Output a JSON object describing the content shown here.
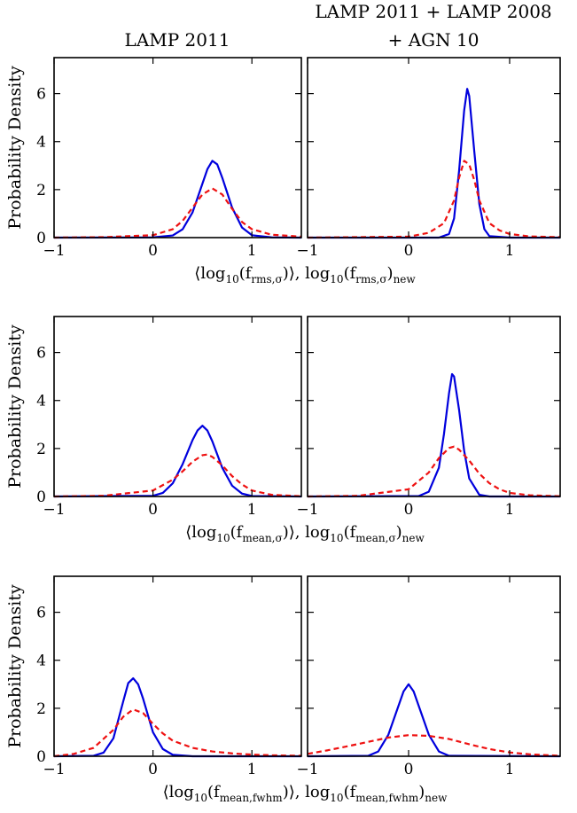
{
  "column_titles": [
    [
      "LAMP 2011"
    ],
    [
      "LAMP 2011 + LAMP 2008",
      "+ AGN 10"
    ]
  ],
  "ylabel": "Probability Density",
  "colors": {
    "solid": "#0000dd",
    "dashed": "#ee1111",
    "axis": "#000000"
  },
  "chart_data": [
    {
      "type": "line",
      "row": 0,
      "col": 0,
      "grid": false,
      "xlim": [
        -1,
        1.5
      ],
      "ylim": [
        0,
        7.5
      ],
      "xticks": [
        -1,
        0,
        1
      ],
      "xtick_labels": [
        "−1",
        "0",
        "1"
      ],
      "yticks": [
        0,
        2,
        4,
        6
      ],
      "ytick_labels": [
        "0",
        "2",
        "4",
        "6"
      ],
      "xlabel": [
        "⟨log",
        "10",
        "(f",
        "rms,σ",
        ")⟩, log",
        "10",
        "(f",
        "rms,σ",
        ")",
        "new"
      ],
      "series": [
        {
          "style": "solid",
          "x": [
            -1,
            0,
            0.2,
            0.3,
            0.4,
            0.5,
            0.55,
            0.6,
            0.65,
            0.7,
            0.8,
            0.9,
            1.0,
            1.2,
            1.5
          ],
          "y": [
            0,
            0.01,
            0.09,
            0.35,
            1.05,
            2.25,
            2.85,
            3.2,
            3.05,
            2.5,
            1.25,
            0.42,
            0.1,
            0.01,
            0
          ]
        },
        {
          "style": "dashed",
          "x": [
            -1,
            -0.5,
            0,
            0.2,
            0.3,
            0.4,
            0.5,
            0.6,
            0.7,
            0.8,
            0.9,
            1.0,
            1.2,
            1.5
          ],
          "y": [
            0,
            0.02,
            0.1,
            0.35,
            0.7,
            1.25,
            1.8,
            2.05,
            1.8,
            1.2,
            0.65,
            0.35,
            0.12,
            0.04
          ]
        }
      ]
    },
    {
      "type": "line",
      "row": 0,
      "col": 1,
      "grid": false,
      "xlim": [
        -1,
        1.5
      ],
      "ylim": [
        0,
        7.5
      ],
      "xticks": [
        -1,
        0,
        1
      ],
      "xtick_labels": [
        "−1",
        "0",
        "1"
      ],
      "yticks": [
        0,
        2,
        4,
        6
      ],
      "ytick_labels": [],
      "series": [
        {
          "style": "solid",
          "x": [
            -1,
            0.3,
            0.4,
            0.45,
            0.5,
            0.55,
            0.58,
            0.6,
            0.65,
            0.7,
            0.75,
            0.8,
            1.0,
            1.5
          ],
          "y": [
            0,
            0,
            0.15,
            0.8,
            2.8,
            5.3,
            6.2,
            5.9,
            3.6,
            1.4,
            0.35,
            0.06,
            0,
            0
          ]
        },
        {
          "style": "dashed",
          "x": [
            -1,
            0,
            0.2,
            0.35,
            0.45,
            0.5,
            0.55,
            0.6,
            0.65,
            0.7,
            0.8,
            0.9,
            1.0,
            1.2,
            1.5
          ],
          "y": [
            0,
            0.04,
            0.2,
            0.6,
            1.55,
            2.5,
            3.2,
            3.05,
            2.4,
            1.55,
            0.6,
            0.3,
            0.15,
            0.05,
            0.02
          ]
        }
      ]
    },
    {
      "type": "line",
      "row": 1,
      "col": 0,
      "grid": false,
      "xlim": [
        -1,
        1.5
      ],
      "ylim": [
        0,
        7.5
      ],
      "xticks": [
        -1,
        0,
        1
      ],
      "xtick_labels": [
        "−1",
        "0",
        "1"
      ],
      "yticks": [
        0,
        2,
        4,
        6
      ],
      "ytick_labels": [
        "0",
        "2",
        "4",
        "6"
      ],
      "xlabel": [
        "⟨log",
        "10",
        "(f",
        "mean,σ",
        ")⟩, log",
        "10",
        "(f",
        "mean,σ",
        ")",
        "new"
      ],
      "series": [
        {
          "style": "solid",
          "x": [
            -1,
            0,
            0.1,
            0.2,
            0.3,
            0.4,
            0.45,
            0.5,
            0.55,
            0.6,
            0.7,
            0.8,
            0.9,
            1.0,
            1.5
          ],
          "y": [
            0,
            0.03,
            0.15,
            0.55,
            1.35,
            2.35,
            2.75,
            2.95,
            2.75,
            2.3,
            1.2,
            0.45,
            0.12,
            0.02,
            0
          ]
        },
        {
          "style": "dashed",
          "x": [
            -1,
            -0.5,
            0,
            0.2,
            0.3,
            0.4,
            0.5,
            0.55,
            0.6,
            0.7,
            0.8,
            0.9,
            1.0,
            1.2,
            1.5
          ],
          "y": [
            0,
            0.03,
            0.25,
            0.7,
            1.05,
            1.45,
            1.72,
            1.75,
            1.65,
            1.3,
            0.85,
            0.5,
            0.25,
            0.07,
            0.01
          ]
        }
      ]
    },
    {
      "type": "line",
      "row": 1,
      "col": 1,
      "grid": false,
      "xlim": [
        -1,
        1.5
      ],
      "ylim": [
        0,
        7.5
      ],
      "xticks": [
        -1,
        0,
        1
      ],
      "xtick_labels": [
        "−1",
        "0",
        "1"
      ],
      "yticks": [
        0,
        2,
        4,
        6
      ],
      "ytick_labels": [],
      "series": [
        {
          "style": "solid",
          "x": [
            -1,
            0.1,
            0.2,
            0.3,
            0.35,
            0.4,
            0.43,
            0.45,
            0.5,
            0.55,
            0.6,
            0.7,
            0.8,
            1.5
          ],
          "y": [
            0,
            0.02,
            0.2,
            1.2,
            2.6,
            4.3,
            5.1,
            5.0,
            3.6,
            1.9,
            0.75,
            0.07,
            0,
            0
          ]
        },
        {
          "style": "dashed",
          "x": [
            -1,
            -0.5,
            0,
            0.2,
            0.3,
            0.4,
            0.45,
            0.5,
            0.6,
            0.7,
            0.8,
            0.9,
            1.0,
            1.2,
            1.5
          ],
          "y": [
            0,
            0.03,
            0.3,
            1.0,
            1.6,
            2.02,
            2.08,
            1.95,
            1.5,
            0.95,
            0.55,
            0.3,
            0.15,
            0.05,
            0.01
          ]
        }
      ]
    },
    {
      "type": "line",
      "row": 2,
      "col": 0,
      "grid": false,
      "xlim": [
        -1,
        1.5
      ],
      "ylim": [
        0,
        7.5
      ],
      "xticks": [
        -1,
        0,
        1
      ],
      "xtick_labels": [
        "−1",
        "0",
        "1"
      ],
      "yticks": [
        0,
        2,
        4,
        6
      ],
      "ytick_labels": [
        "0",
        "2",
        "4",
        "6"
      ],
      "xlabel": [
        "⟨log",
        "10",
        "(f",
        "mean,fwhm",
        ")⟩, log",
        "10",
        "(f",
        "mean,fwhm",
        ")",
        "new"
      ],
      "series": [
        {
          "style": "solid",
          "x": [
            -1,
            -0.6,
            -0.5,
            -0.4,
            -0.3,
            -0.25,
            -0.2,
            -0.15,
            -0.1,
            0,
            0.1,
            0.2,
            0.4,
            1.5
          ],
          "y": [
            0,
            0.02,
            0.15,
            0.75,
            2.3,
            3.05,
            3.25,
            3.0,
            2.4,
            1.0,
            0.3,
            0.06,
            0,
            0
          ]
        },
        {
          "style": "dashed",
          "x": [
            -1,
            -0.8,
            -0.6,
            -0.4,
            -0.3,
            -0.2,
            -0.1,
            0,
            0.1,
            0.2,
            0.4,
            0.6,
            0.8,
            1.0,
            1.2,
            1.5
          ],
          "y": [
            0,
            0.1,
            0.35,
            1.1,
            1.65,
            1.95,
            1.8,
            1.35,
            0.95,
            0.65,
            0.35,
            0.2,
            0.12,
            0.07,
            0.04,
            0.02
          ]
        }
      ]
    },
    {
      "type": "line",
      "row": 2,
      "col": 1,
      "grid": false,
      "xlim": [
        -1,
        1.5
      ],
      "ylim": [
        0,
        7.5
      ],
      "xticks": [
        -1,
        0,
        1
      ],
      "xtick_labels": [
        "−1",
        "0",
        "1"
      ],
      "yticks": [
        0,
        2,
        4,
        6
      ],
      "ytick_labels": [],
      "series": [
        {
          "style": "solid",
          "x": [
            -1,
            -0.4,
            -0.3,
            -0.2,
            -0.1,
            -0.05,
            0,
            0.05,
            0.1,
            0.2,
            0.3,
            0.4,
            1.5
          ],
          "y": [
            0,
            0.02,
            0.2,
            0.9,
            2.1,
            2.7,
            3.0,
            2.7,
            2.1,
            0.9,
            0.2,
            0.02,
            0
          ]
        },
        {
          "style": "dashed",
          "x": [
            -1,
            -0.8,
            -0.6,
            -0.4,
            -0.2,
            0,
            0.2,
            0.4,
            0.6,
            0.8,
            1.0,
            1.2,
            1.5
          ],
          "y": [
            0.1,
            0.25,
            0.42,
            0.6,
            0.78,
            0.88,
            0.85,
            0.72,
            0.5,
            0.3,
            0.16,
            0.08,
            0.02
          ]
        }
      ]
    }
  ]
}
